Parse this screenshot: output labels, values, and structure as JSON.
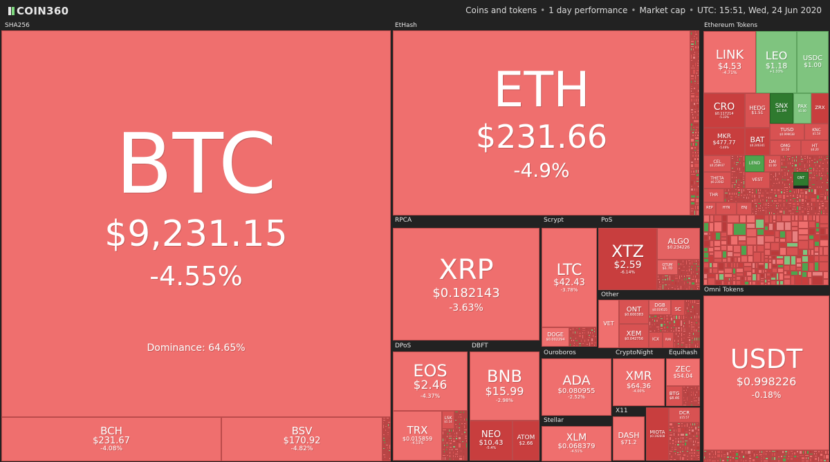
{
  "header": {
    "logo_text": "COIN360",
    "settings": {
      "mode": "Coins and tokens",
      "period": "1 day performance",
      "metric": "Market cap",
      "time": "UTC: 15:51, Wed, 24 Jun 2020"
    }
  },
  "groups": {
    "sha256": "SHA256",
    "ethash": "EtHash",
    "rpca": "RPCA",
    "scrypt": "Scrypt",
    "pos": "PoS",
    "other": "Other",
    "dpos": "DPoS",
    "dbft": "DBFT",
    "ouroboros": "Ouroboros",
    "cryptonight": "CryptoNight",
    "equihash": "Equihash",
    "stellar": "Stellar",
    "x11": "X11",
    "ethereum_tokens": "Ethereum Tokens",
    "omni_tokens": "Omni Tokens"
  },
  "coins": {
    "btc": {
      "symbol": "BTC",
      "price": "$9,231.15",
      "change": "-4.55%",
      "dominance": "Dominance: 64.65%"
    },
    "bch": {
      "symbol": "BCH",
      "price": "$231.67",
      "change": "-4.08%"
    },
    "bsv": {
      "symbol": "BSV",
      "price": "$170.92",
      "change": "-4.82%"
    },
    "eth": {
      "symbol": "ETH",
      "price": "$231.66",
      "change": "-4.9%"
    },
    "xrp": {
      "symbol": "XRP",
      "price": "$0.182143",
      "change": "-3.63%"
    },
    "ltc": {
      "symbol": "LTC",
      "price": "$42.43",
      "change": "-3.78%"
    },
    "doge": {
      "symbol": "DOGE",
      "price": "$0.002294",
      "change": ""
    },
    "xtz": {
      "symbol": "XTZ",
      "price": "$2.59",
      "change": "-6.14%"
    },
    "algo": {
      "symbol": "ALGO",
      "price": "$0.234226",
      "change": ""
    },
    "qtum": {
      "symbol": "QTUM",
      "price": "$1.70",
      "change": ""
    },
    "vet": {
      "symbol": "VET",
      "price": "",
      "change": ""
    },
    "ont": {
      "symbol": "ONT",
      "price": "$0.600383",
      "change": ""
    },
    "xem": {
      "symbol": "XEM",
      "price": "$0.042756",
      "change": ""
    },
    "icx": {
      "symbol": "ICX",
      "price": "",
      "change": ""
    },
    "dgb": {
      "symbol": "DGB",
      "price": "$0.019525",
      "change": ""
    },
    "sc": {
      "symbol": "SC",
      "price": "",
      "change": ""
    },
    "rvn": {
      "symbol": "RVN",
      "price": "",
      "change": ""
    },
    "waves": {
      "symbol": "WAVES",
      "price": "",
      "change": ""
    },
    "eos": {
      "symbol": "EOS",
      "price": "$2.46",
      "change": "-4.37%"
    },
    "trx": {
      "symbol": "TRX",
      "price": "$0.015859",
      "change": "-4.13%"
    },
    "lsk": {
      "symbol": "LSK",
      "price": "$1.14",
      "change": ""
    },
    "bnb": {
      "symbol": "BNB",
      "price": "$15.99",
      "change": "-2.98%"
    },
    "neo": {
      "symbol": "NEO",
      "price": "$10.43",
      "change": "-5.4%"
    },
    "atom": {
      "symbol": "ATOM",
      "price": "$2.66",
      "change": ""
    },
    "ada": {
      "symbol": "ADA",
      "price": "$0.080955",
      "change": "-2.52%"
    },
    "xmr": {
      "symbol": "XMR",
      "price": "$64.36",
      "change": "-4.00%"
    },
    "zec": {
      "symbol": "ZEC",
      "price": "$54.04",
      "change": ""
    },
    "btg": {
      "symbol": "BTG",
      "price": "$8.46",
      "change": ""
    },
    "xlm": {
      "symbol": "XLM",
      "price": "$0.068379",
      "change": "-4.51%"
    },
    "dash": {
      "symbol": "DASH",
      "price": "$71.2",
      "change": ""
    },
    "miota": {
      "symbol": "MIOTA",
      "price": "$0.192608",
      "change": ""
    },
    "dcr": {
      "symbol": "DCR",
      "price": "$15.57",
      "change": ""
    },
    "link": {
      "symbol": "LINK",
      "price": "$4.53",
      "change": "-4.71%"
    },
    "leo": {
      "symbol": "LEO",
      "price": "$1.18",
      "change": "+1.33%"
    },
    "usdc": {
      "symbol": "USDC",
      "price": "$1.00",
      "change": ""
    },
    "cro": {
      "symbol": "CRO",
      "price": "$0.117214",
      "change": "-5.33%"
    },
    "hedg": {
      "symbol": "HEDG",
      "price": "$1.51",
      "change": ""
    },
    "snx": {
      "symbol": "SNX",
      "price": "$1.84",
      "change": ""
    },
    "pax": {
      "symbol": "PAX",
      "price": "$1.00",
      "change": ""
    },
    "zrx": {
      "symbol": "ZRX",
      "price": "",
      "change": ""
    },
    "mkr": {
      "symbol": "MKR",
      "price": "$477.77",
      "change": "-5.46%"
    },
    "bat": {
      "symbol": "BAT",
      "price": "$0.246341",
      "change": ""
    },
    "tusd": {
      "symbol": "TUSD",
      "price": "$0.999638",
      "change": ""
    },
    "knc": {
      "symbol": "KNC",
      "price": "$1.54",
      "change": ""
    },
    "omg": {
      "symbol": "OMG",
      "price": "$1.50",
      "change": ""
    },
    "ht": {
      "symbol": "HT",
      "price": "$4.20",
      "change": ""
    },
    "cel": {
      "symbol": "CEL",
      "price": "$0.258937",
      "change": ""
    },
    "lend": {
      "symbol": "LEND",
      "price": "",
      "change": ""
    },
    "dai": {
      "symbol": "DAI",
      "price": "$1.00",
      "change": ""
    },
    "theta": {
      "symbol": "THETA",
      "price": "$0.23562",
      "change": ""
    },
    "vest": {
      "symbol": "VEST",
      "price": "",
      "change": ""
    },
    "qnt": {
      "symbol": "QNT",
      "price": "",
      "change": ""
    },
    "thr": {
      "symbol": "THR",
      "price": "",
      "change": ""
    },
    "rep": {
      "symbol": "REP",
      "price": "",
      "change": ""
    },
    "hyn": {
      "symbol": "HYN",
      "price": "",
      "change": ""
    },
    "enj": {
      "symbol": "ENJ",
      "price": "",
      "change": ""
    },
    "usdt": {
      "symbol": "USDT",
      "price": "$0.998226",
      "change": "-0.18%"
    }
  }
}
